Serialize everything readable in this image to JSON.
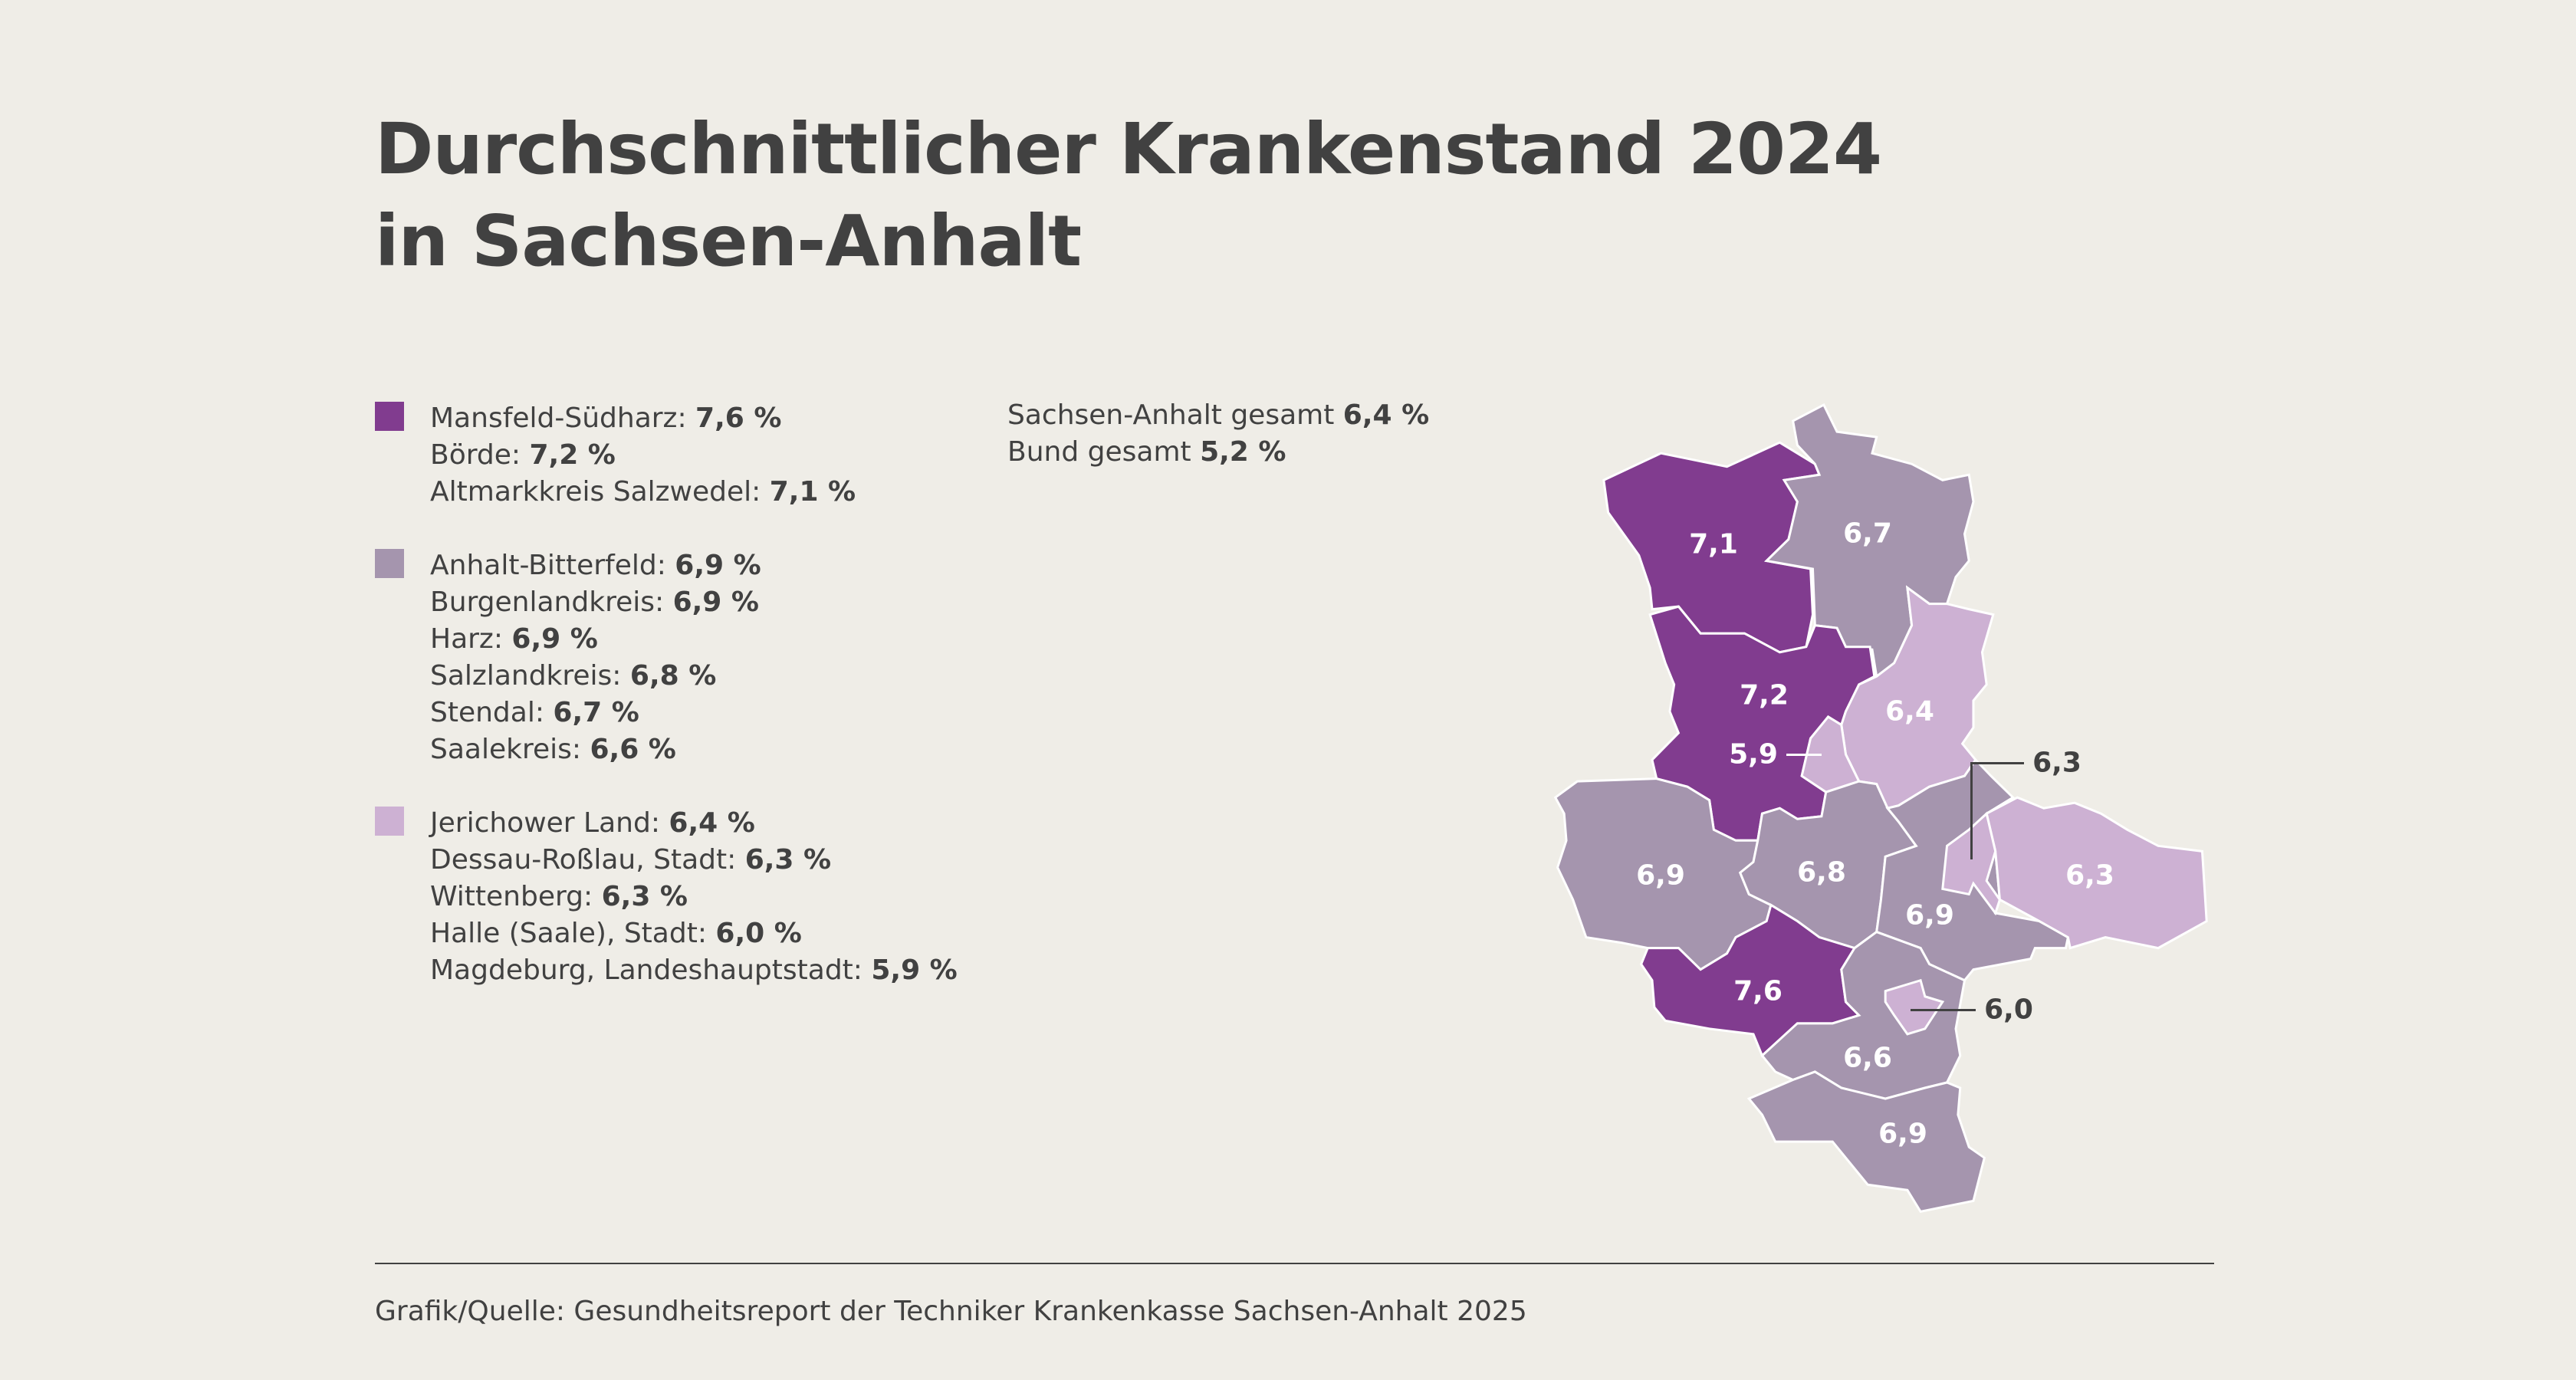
{
  "title": {
    "line1": "Durchschnittlicher Krankenstand 2024",
    "line2": "in Sachsen-Anhalt"
  },
  "colors": {
    "high": "#813c8f",
    "mid": "#a595ae",
    "low": "#cdb1d3",
    "background": "#efede7",
    "text": "#414141"
  },
  "legend": [
    {
      "color": "#813c8f",
      "items": [
        {
          "name": "Mansfeld-Südharz: ",
          "value": "7,6 %"
        },
        {
          "name": "Börde: ",
          "value": "7,2 %"
        },
        {
          "name": "Altmarkkreis Salzwedel: ",
          "value": "7,1 %"
        }
      ]
    },
    {
      "color": "#a595ae",
      "items": [
        {
          "name": "Anhalt-Bitterfeld: ",
          "value": "6,9 %"
        },
        {
          "name": "Burgenlandkreis: ",
          "value": "6,9 %"
        },
        {
          "name": "Harz: ",
          "value": "6,9 %"
        },
        {
          "name": "Salzlandkreis: ",
          "value": "6,8 %"
        },
        {
          "name": "Stendal: ",
          "value": "6,7 %"
        },
        {
          "name": "Saalekreis: ",
          "value": "6,6 %"
        }
      ]
    },
    {
      "color": "#cdb1d3",
      "items": [
        {
          "name": "Jerichower Land: ",
          "value": "6,4 %"
        },
        {
          "name": "Dessau-Roßlau, Stadt: ",
          "value": "6,3 %"
        },
        {
          "name": "Wittenberg: ",
          "value": "6,3 %"
        },
        {
          "name": "Halle (Saale), Stadt: ",
          "value": "6,0 %"
        },
        {
          "name": "Magdeburg, Landeshauptstadt: ",
          "value": "5,9 %"
        }
      ]
    }
  ],
  "totals": [
    {
      "name": "Sachsen-Anhalt gesamt ",
      "value": "6,4 %"
    },
    {
      "name": "Bund gesamt ",
      "value": "5,2 %"
    }
  ],
  "map": {
    "regions": [
      {
        "id": "altmark",
        "label": "7,1",
        "class": "high"
      },
      {
        "id": "stendal",
        "label": "6,7",
        "class": "mid"
      },
      {
        "id": "boerde",
        "label": "7,2",
        "class": "high"
      },
      {
        "id": "magdeburg",
        "label": "5,9",
        "class": "low"
      },
      {
        "id": "jerichow",
        "label": "6,4",
        "class": "low"
      },
      {
        "id": "harz",
        "label": "6,9",
        "class": "mid"
      },
      {
        "id": "salzland",
        "label": "6,8",
        "class": "mid"
      },
      {
        "id": "anhalt",
        "label": "6,9",
        "class": "mid"
      },
      {
        "id": "dessau",
        "label": "6,3",
        "class": "low"
      },
      {
        "id": "wittenberg",
        "label": "6,3",
        "class": "low"
      },
      {
        "id": "mansfeld",
        "label": "7,6",
        "class": "high"
      },
      {
        "id": "saalekreis",
        "label": "6,6",
        "class": "mid"
      },
      {
        "id": "halle",
        "label": "6,0",
        "class": "low"
      },
      {
        "id": "burgenland",
        "label": "6,9",
        "class": "mid"
      }
    ]
  },
  "source": "Grafik/Quelle: Gesundheitsreport der Techniker Krankenkasse Sachsen-Anhalt 2025"
}
